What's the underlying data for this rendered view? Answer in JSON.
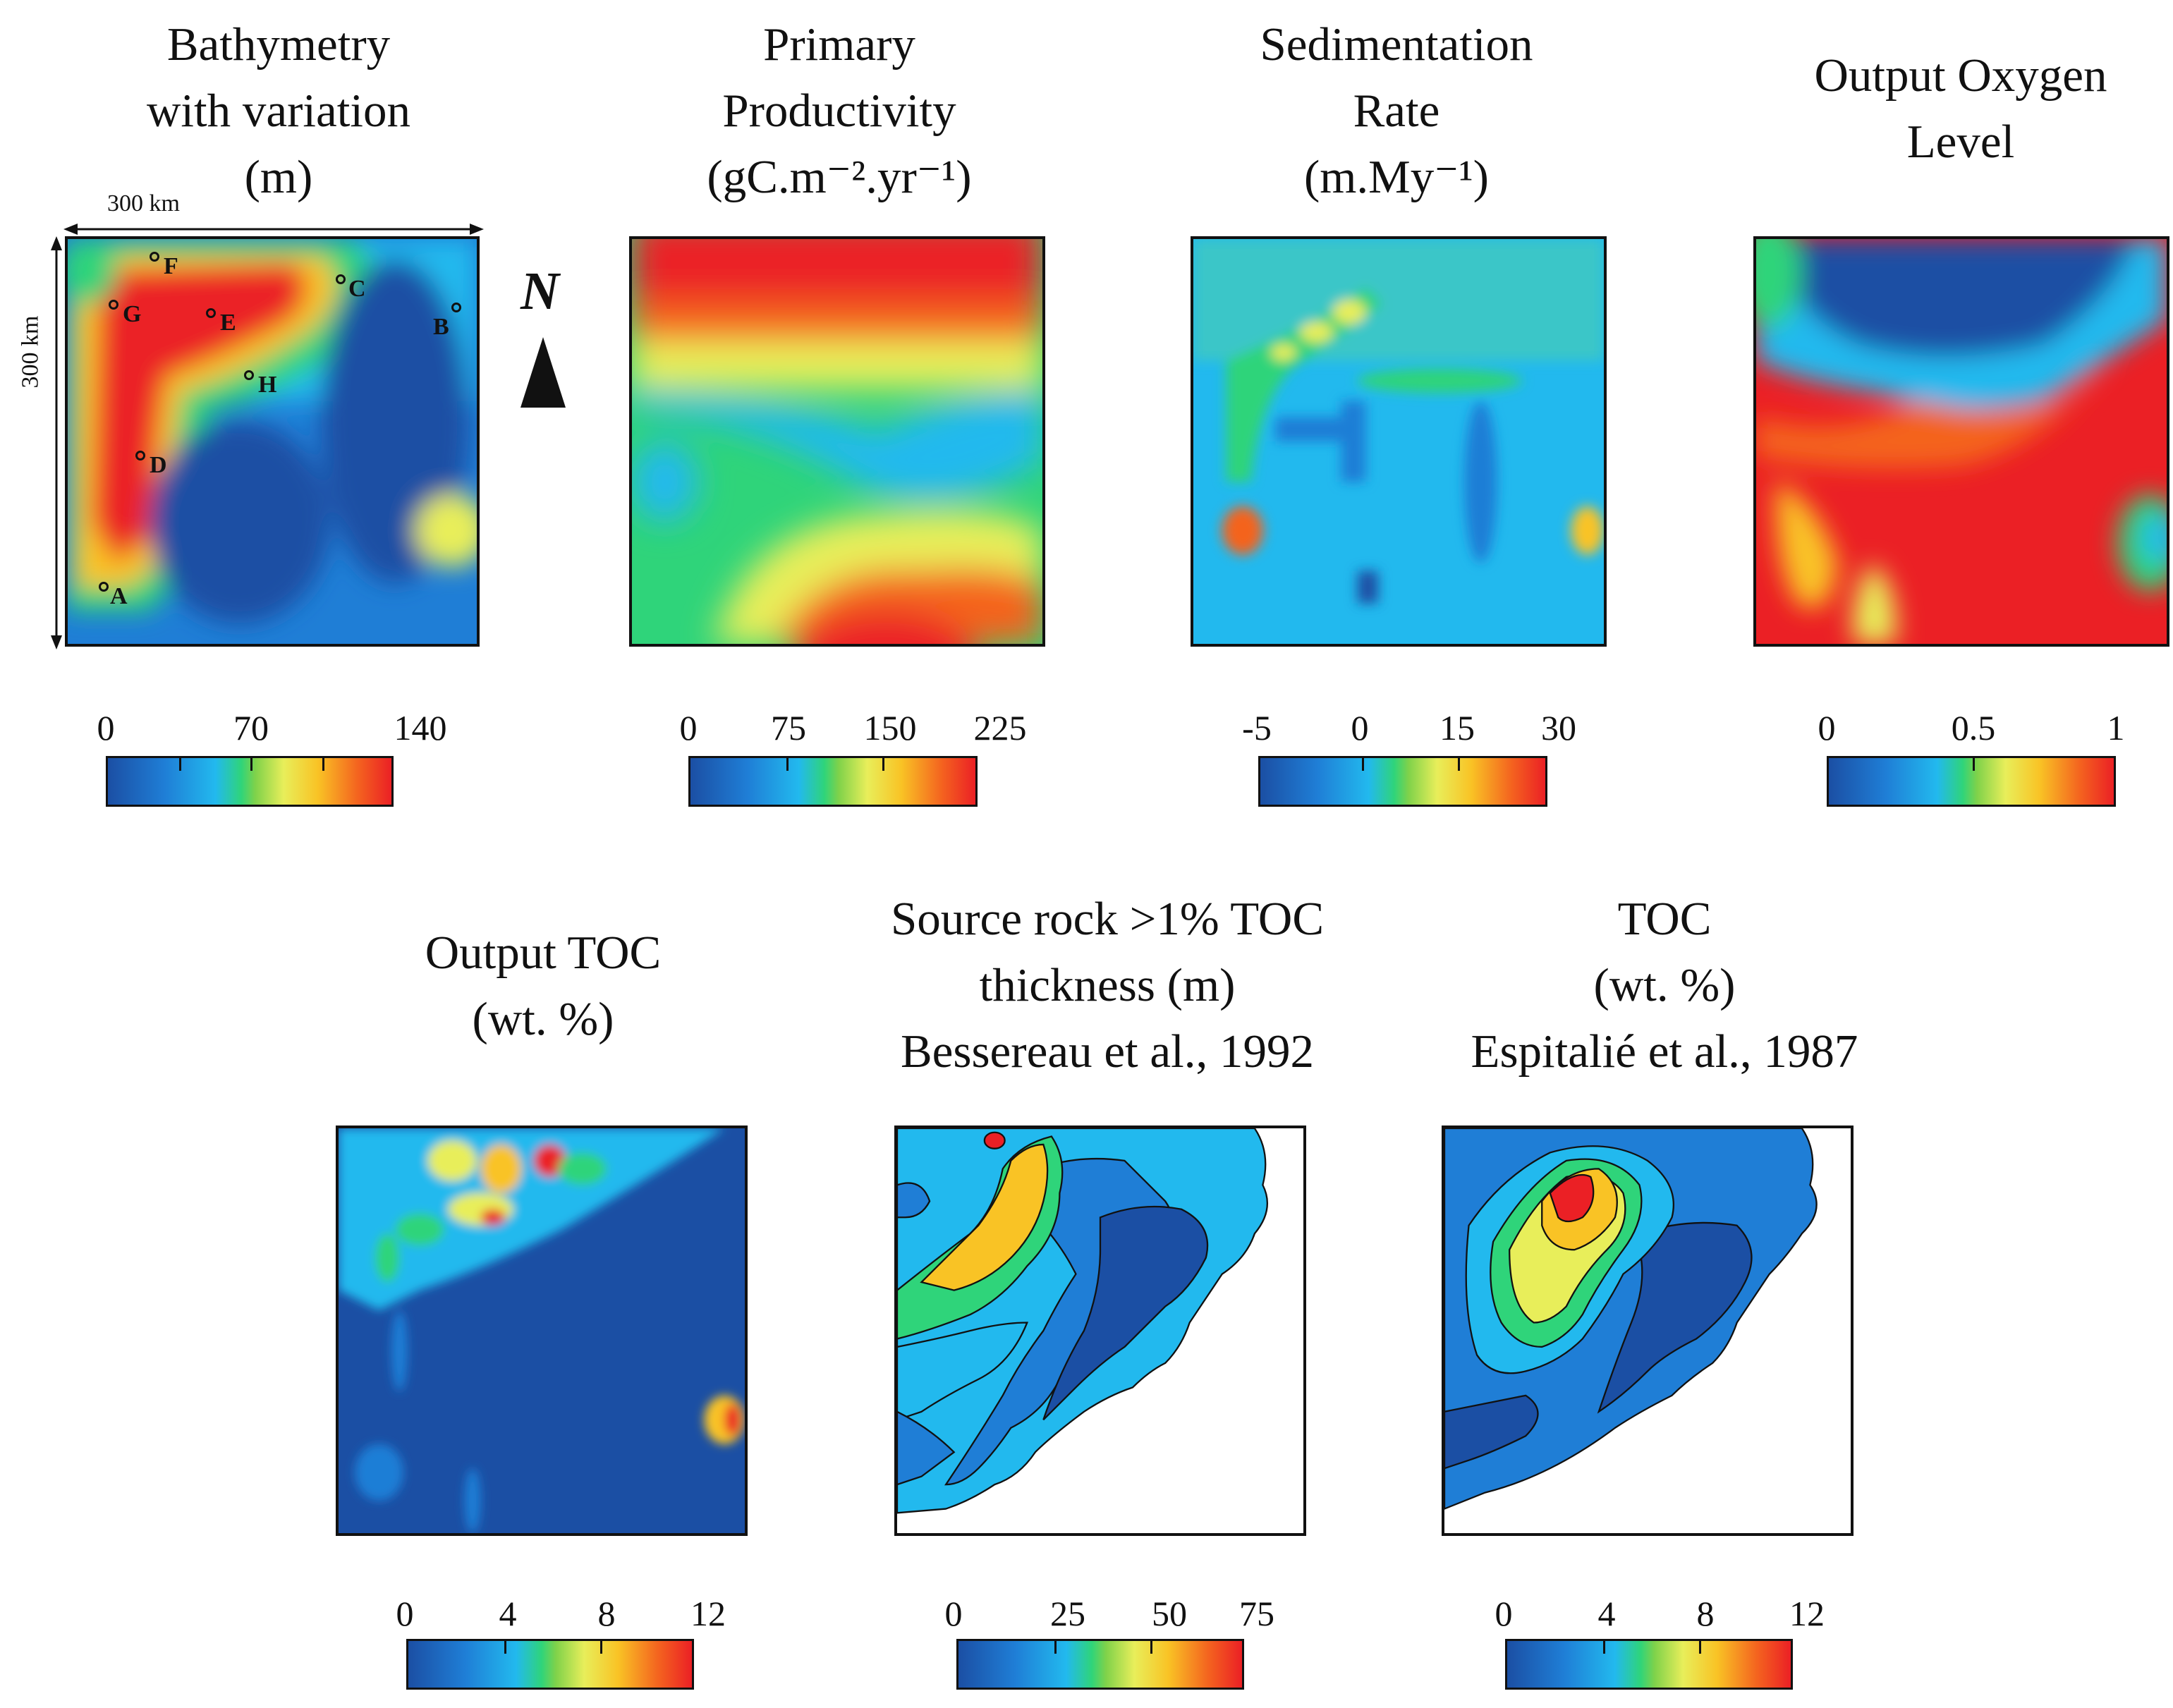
{
  "panels": {
    "bathymetry": {
      "title": [
        "Bathymetry",
        "with variation",
        "(m)"
      ],
      "ticks": [
        "0",
        "70",
        "140"
      ]
    },
    "productivity": {
      "title": [
        "Primary",
        "Productivity",
        "(gC.m⁻².yr⁻¹)"
      ],
      "ticks": [
        "0",
        "75",
        "150",
        "225"
      ]
    },
    "sedimentation": {
      "title": [
        "Sedimentation",
        "Rate",
        "(m.My⁻¹)"
      ],
      "ticks": [
        "-5",
        "0",
        "15",
        "30"
      ]
    },
    "oxygen": {
      "title": [
        "Output Oxygen",
        "Level"
      ],
      "ticks": [
        "0",
        "0.5",
        "1"
      ]
    },
    "toc_output": {
      "title": [
        "Output TOC",
        "(wt. %)"
      ],
      "ticks": [
        "0",
        "4",
        "8",
        "12"
      ]
    },
    "source_rock": {
      "title": [
        "Source rock >1% TOC",
        "thickness (m)",
        "Bessereau et al., 1992"
      ],
      "ticks": [
        "0",
        "25",
        "50",
        "75"
      ]
    },
    "toc_espitalie": {
      "title": [
        "TOC",
        "(wt. %)",
        "Espitalié et al., 1987"
      ],
      "ticks": [
        "0",
        "4",
        "8",
        "12"
      ]
    }
  },
  "scale": {
    "horizontal": "300 km",
    "vertical": "300 km"
  },
  "north_label": "N",
  "wells": [
    "A",
    "B",
    "C",
    "D",
    "E",
    "F",
    "G",
    "H"
  ],
  "colors": {
    "deep_blue": "#1b4fa4",
    "blue": "#1f7ed6",
    "cyan": "#22b9ee",
    "green": "#2fd47a",
    "yellow": "#e8ee5a",
    "orange": "#f9c325",
    "red": "#eb2025"
  }
}
